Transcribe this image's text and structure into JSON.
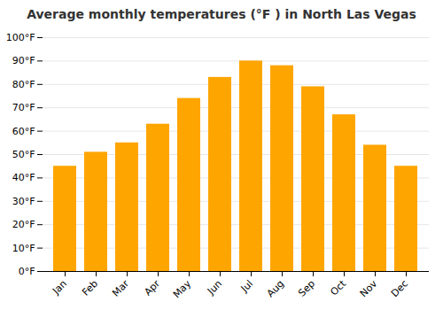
{
  "chart_data": {
    "type": "bar",
    "title": "Average monthly temperatures (°F ) in North Las Vegas",
    "categories": [
      "Jan",
      "Feb",
      "Mar",
      "Apr",
      "May",
      "Jun",
      "Jul",
      "Aug",
      "Sep",
      "Oct",
      "Nov",
      "Dec"
    ],
    "values": [
      45,
      51,
      55,
      63,
      74,
      83,
      90,
      88,
      79,
      67,
      54,
      45
    ],
    "color": "#FFA500",
    "ylim": [
      0,
      100
    ],
    "yticks": [
      {
        "value": 0,
        "label": "0°F"
      },
      {
        "value": 10,
        "label": "10°F"
      },
      {
        "value": 20,
        "label": "20°F"
      },
      {
        "value": 30,
        "label": "30°F"
      },
      {
        "value": 40,
        "label": "40°F"
      },
      {
        "value": 50,
        "label": "50°F"
      },
      {
        "value": 60,
        "label": "60°F"
      },
      {
        "value": 70,
        "label": "70°F"
      },
      {
        "value": 80,
        "label": "80°F"
      },
      {
        "value": 90,
        "label": "90°F"
      },
      {
        "value": 100,
        "label": "100°F"
      }
    ],
    "grid": true
  }
}
